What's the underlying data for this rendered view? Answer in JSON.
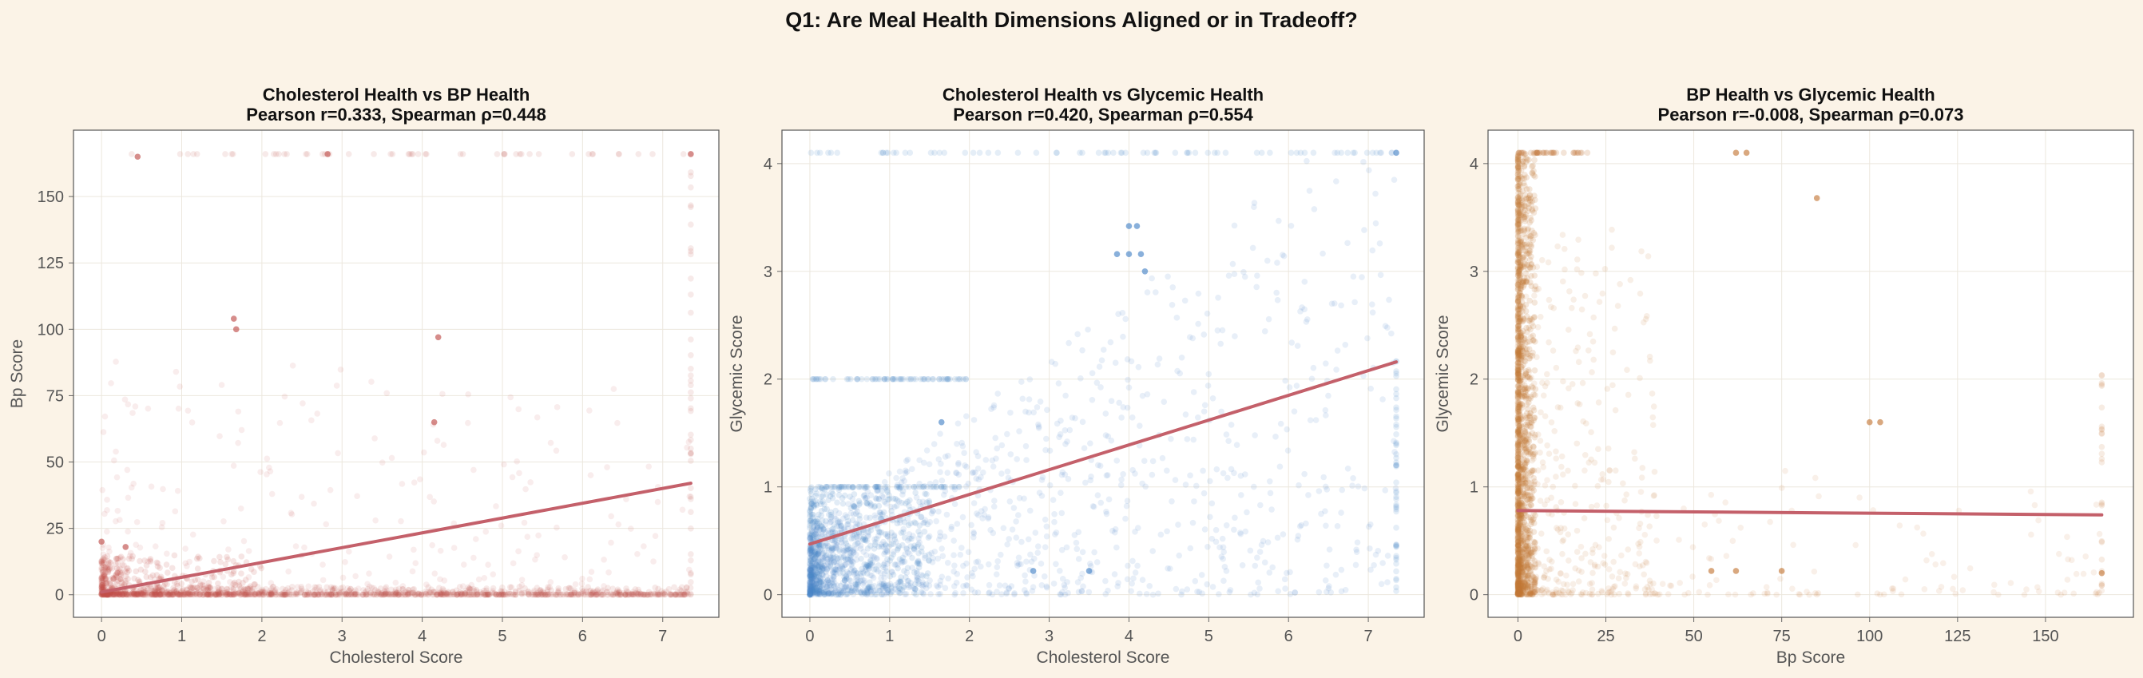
{
  "suptitle": "Q1: Are Meal Health Dimensions Aligned or in Tradeoff?",
  "colors": {
    "background": "#fbf3e7",
    "plot_background": "#ffffff",
    "trend_line": "#c4606a",
    "series_red": "#c0504d",
    "series_blue": "#4a86c8",
    "series_orange": "#c47a3a"
  },
  "chart_data": [
    {
      "type": "scatter",
      "title": "Cholesterol Health vs BP Health",
      "subtitle": "Pearson r=0.333, Spearman ρ=0.448",
      "xlabel": "Cholesterol Score",
      "ylabel": "Bp Score",
      "xlim": [
        -0.35,
        7.7
      ],
      "ylim": [
        -8.5,
        175
      ],
      "xticks": [
        0,
        1,
        2,
        3,
        4,
        5,
        6,
        7
      ],
      "yticks": [
        0,
        25,
        50,
        75,
        100,
        125,
        150
      ],
      "grid": true,
      "point_color": "#c0504d",
      "trend": {
        "x": [
          0,
          7.35
        ],
        "y": [
          1.0,
          42.0
        ]
      },
      "highlight_points": [
        [
          0.45,
          165
        ],
        [
          2.82,
          166
        ],
        [
          1.65,
          104
        ],
        [
          1.68,
          100
        ],
        [
          4.2,
          97
        ],
        [
          4.15,
          65
        ],
        [
          7.35,
          166
        ],
        [
          0.0,
          20
        ],
        [
          0.3,
          18
        ]
      ],
      "cloud": {
        "x_max": 7.35,
        "y_max": 166,
        "dense_x_max": 2.0,
        "dense_y_max": 15
      }
    },
    {
      "type": "scatter",
      "title": "Cholesterol Health vs Glycemic Health",
      "subtitle": "Pearson r=0.420, Spearman ρ=0.554",
      "xlabel": "Cholesterol Score",
      "ylabel": "Glycemic Score",
      "xlim": [
        -0.35,
        7.7
      ],
      "ylim": [
        -0.21,
        4.31
      ],
      "xticks": [
        0,
        1,
        2,
        3,
        4,
        5,
        6,
        7
      ],
      "yticks": [
        0,
        1,
        2,
        3,
        4
      ],
      "grid": true,
      "point_color": "#4a86c8",
      "trend": {
        "x": [
          0,
          7.35
        ],
        "y": [
          0.47,
          2.16
        ]
      },
      "highlight_points": [
        [
          4.0,
          3.42
        ],
        [
          4.1,
          3.42
        ],
        [
          4.0,
          3.16
        ],
        [
          4.15,
          3.16
        ],
        [
          3.85,
          3.16
        ],
        [
          4.2,
          3.0
        ],
        [
          7.35,
          4.1
        ],
        [
          1.65,
          1.6
        ],
        [
          2.8,
          0.22
        ],
        [
          3.5,
          0.22
        ],
        [
          0.0,
          0.0
        ]
      ],
      "cloud": {
        "x_max": 7.35,
        "y_max": 4.1,
        "dense_x_max": 1.5,
        "dense_y_max": 1.0
      }
    },
    {
      "type": "scatter",
      "title": "BP Health vs Glycemic Health",
      "subtitle": "Pearson r=-0.008, Spearman ρ=0.073",
      "xlabel": "Bp Score",
      "ylabel": "Glycemic Score",
      "xlim": [
        -8.5,
        175
      ],
      "ylim": [
        -0.21,
        4.31
      ],
      "xticks": [
        0,
        25,
        50,
        75,
        100,
        125,
        150
      ],
      "yticks": [
        0,
        1,
        2,
        3,
        4
      ],
      "grid": true,
      "point_color": "#c47a3a",
      "trend": {
        "x": [
          0,
          166
        ],
        "y": [
          0.78,
          0.74
        ]
      },
      "highlight_points": [
        [
          62,
          4.1
        ],
        [
          65,
          4.1
        ],
        [
          85,
          3.68
        ],
        [
          100,
          1.6
        ],
        [
          103,
          1.6
        ],
        [
          55,
          0.22
        ],
        [
          62,
          0.22
        ],
        [
          75,
          0.22
        ],
        [
          166,
          0.2
        ]
      ],
      "cloud": {
        "x_max": 166,
        "y_max": 4.1,
        "dense_x_max": 5,
        "dense_y_max": 4.1
      }
    }
  ]
}
